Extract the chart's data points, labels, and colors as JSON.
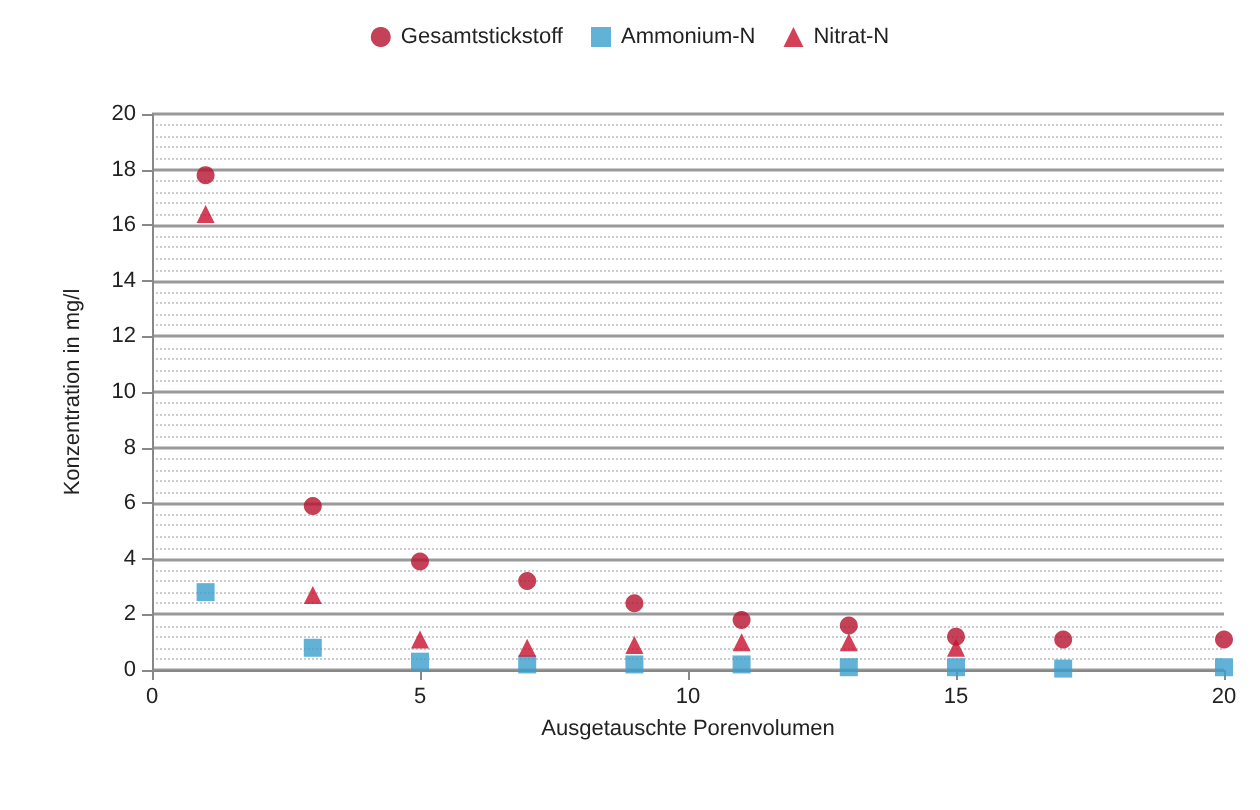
{
  "chart_data": {
    "type": "scatter",
    "xlabel": "Ausgetauschte Porenvolumen",
    "ylabel": "Konzentration in mg/l",
    "x": [
      1,
      3,
      5,
      7,
      9,
      11,
      13,
      15,
      17,
      20
    ],
    "series": [
      {
        "name": "Gesamtstickstoff",
        "color": "#b5122e",
        "marker": "circle",
        "values": [
          17.8,
          5.9,
          3.9,
          3.2,
          2.4,
          1.8,
          1.6,
          1.2,
          1.1,
          1.1
        ]
      },
      {
        "name": "Ammonium-N",
        "color": "#3a9fcc",
        "marker": "square",
        "values": [
          2.8,
          0.8,
          0.3,
          0.2,
          0.2,
          0.2,
          0.1,
          0.1,
          0.05,
          0.1
        ]
      },
      {
        "name": "Nitrat-N",
        "color": "#c8102e",
        "marker": "triangle",
        "values": [
          16.4,
          2.7,
          1.1,
          0.8,
          0.9,
          1.0,
          1.0,
          0.8,
          null,
          null
        ]
      }
    ],
    "xlim": [
      0,
      20
    ],
    "xticks": [
      0,
      5,
      10,
      15,
      20
    ],
    "ylim": [
      0,
      20
    ],
    "yticks": [
      0,
      2,
      4,
      6,
      8,
      10,
      12,
      14,
      16,
      18,
      20
    ],
    "grid": "y",
    "legend": "top"
  }
}
